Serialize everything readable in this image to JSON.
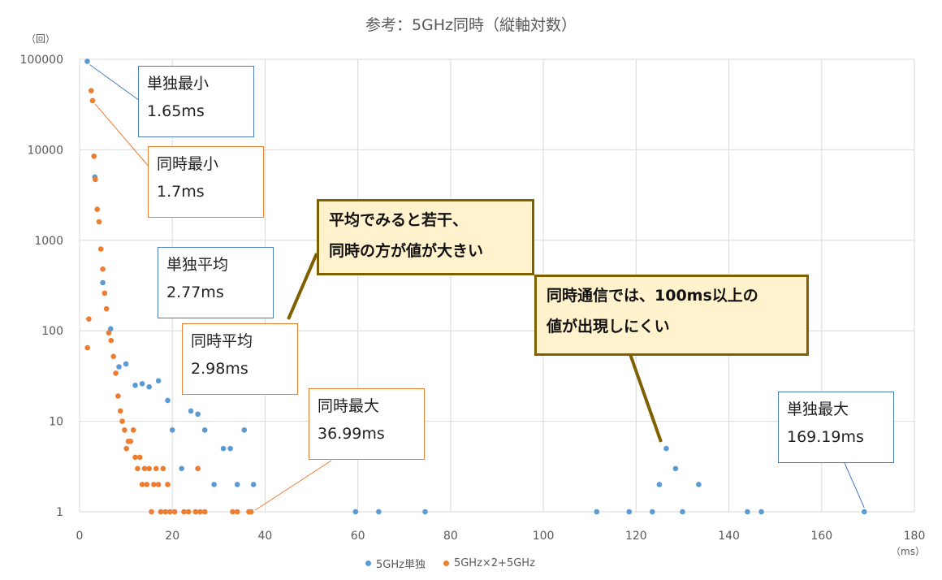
{
  "chart_data": {
    "type": "scatter",
    "title": "参考：5GHz同時（縦軸対数）",
    "xlabel": "（ms）",
    "ylabel": "（回）",
    "xlim": [
      0,
      180
    ],
    "ylim": [
      1,
      100000
    ],
    "y_scale": "log",
    "x_ticks": [
      "0",
      "20",
      "40",
      "60",
      "80",
      "100",
      "120",
      "140",
      "160",
      "180"
    ],
    "y_ticks": [
      "1",
      "10",
      "100",
      "1000",
      "10000",
      "100000"
    ],
    "grid": true,
    "legend_position": "bottom",
    "series": [
      {
        "name": "5GHz単独",
        "color": "#5b9bd5",
        "points": [
          [
            1.65,
            95000
          ],
          [
            3.3,
            5000
          ],
          [
            5.0,
            340
          ],
          [
            6.7,
            105
          ],
          [
            8.5,
            40
          ],
          [
            10,
            43
          ],
          [
            12,
            25
          ],
          [
            13.5,
            26
          ],
          [
            15,
            24
          ],
          [
            17,
            28
          ],
          [
            19,
            17
          ],
          [
            20,
            8
          ],
          [
            22,
            3
          ],
          [
            24,
            13
          ],
          [
            25.5,
            12
          ],
          [
            27,
            8
          ],
          [
            29,
            2
          ],
          [
            31,
            5
          ],
          [
            32.5,
            5
          ],
          [
            34,
            2
          ],
          [
            35.5,
            8
          ],
          [
            37.5,
            2
          ],
          [
            59.5,
            1
          ],
          [
            64.5,
            1
          ],
          [
            74.5,
            1
          ],
          [
            111.5,
            1
          ],
          [
            118.5,
            1
          ],
          [
            123.5,
            1
          ],
          [
            125,
            2
          ],
          [
            126.5,
            5
          ],
          [
            128.5,
            3
          ],
          [
            130,
            1
          ],
          [
            133.5,
            2
          ],
          [
            144,
            1
          ],
          [
            147,
            1
          ],
          [
            169.19,
            1
          ]
        ]
      },
      {
        "name": "5GHz×2+5GHz",
        "color": "#ed7d31",
        "points": [
          [
            1.7,
            65
          ],
          [
            2,
            135
          ],
          [
            2.5,
            45000
          ],
          [
            2.8,
            35000
          ],
          [
            3.1,
            8500
          ],
          [
            3.4,
            4700
          ],
          [
            3.8,
            2200
          ],
          [
            4.2,
            1600
          ],
          [
            4.6,
            800
          ],
          [
            5,
            480
          ],
          [
            5.4,
            260
          ],
          [
            5.8,
            175
          ],
          [
            6.3,
            95
          ],
          [
            6.8,
            78
          ],
          [
            7.3,
            52
          ],
          [
            7.8,
            34
          ],
          [
            8.3,
            19
          ],
          [
            8.8,
            13
          ],
          [
            9.2,
            10
          ],
          [
            9.7,
            8
          ],
          [
            10.1,
            5
          ],
          [
            10.5,
            6
          ],
          [
            11,
            6
          ],
          [
            11.6,
            8
          ],
          [
            12,
            4
          ],
          [
            12.5,
            3
          ],
          [
            13,
            4
          ],
          [
            13.5,
            2
          ],
          [
            14,
            3
          ],
          [
            14.5,
            2
          ],
          [
            15,
            3
          ],
          [
            15.5,
            1
          ],
          [
            16,
            2
          ],
          [
            16.5,
            3
          ],
          [
            17,
            2
          ],
          [
            17.5,
            1
          ],
          [
            18,
            3
          ],
          [
            18.5,
            1
          ],
          [
            19,
            2
          ],
          [
            19.5,
            1
          ],
          [
            20.5,
            1
          ],
          [
            22.5,
            1
          ],
          [
            23.5,
            1
          ],
          [
            25,
            1
          ],
          [
            25.5,
            3
          ],
          [
            26,
            1
          ],
          [
            27,
            1
          ],
          [
            33,
            1
          ],
          [
            34,
            1
          ],
          [
            36.5,
            1
          ],
          [
            36.99,
            1
          ]
        ]
      }
    ]
  },
  "annotations": [
    {
      "id": "single-min",
      "line1": "単独最小",
      "line2": "1.65ms"
    },
    {
      "id": "both-min",
      "line1": "同時最小",
      "line2": "1.7ms"
    },
    {
      "id": "single-avg",
      "line1": "単独平均",
      "line2": "2.77ms"
    },
    {
      "id": "both-avg",
      "line1": "同時平均",
      "line2": "2.98ms"
    },
    {
      "id": "both-max",
      "line1": "同時最大",
      "line2": "36.99ms"
    },
    {
      "id": "single-max",
      "line1": "単独最大",
      "line2": "169.19ms"
    }
  ],
  "callouts": [
    {
      "id": "avg-note",
      "line1": "平均でみると若干、",
      "line2": "同時の方が値が大きい"
    },
    {
      "id": "over100-note",
      "line1": "同時通信では、100ms以上の",
      "line2": "値が出現しにくい"
    }
  ]
}
